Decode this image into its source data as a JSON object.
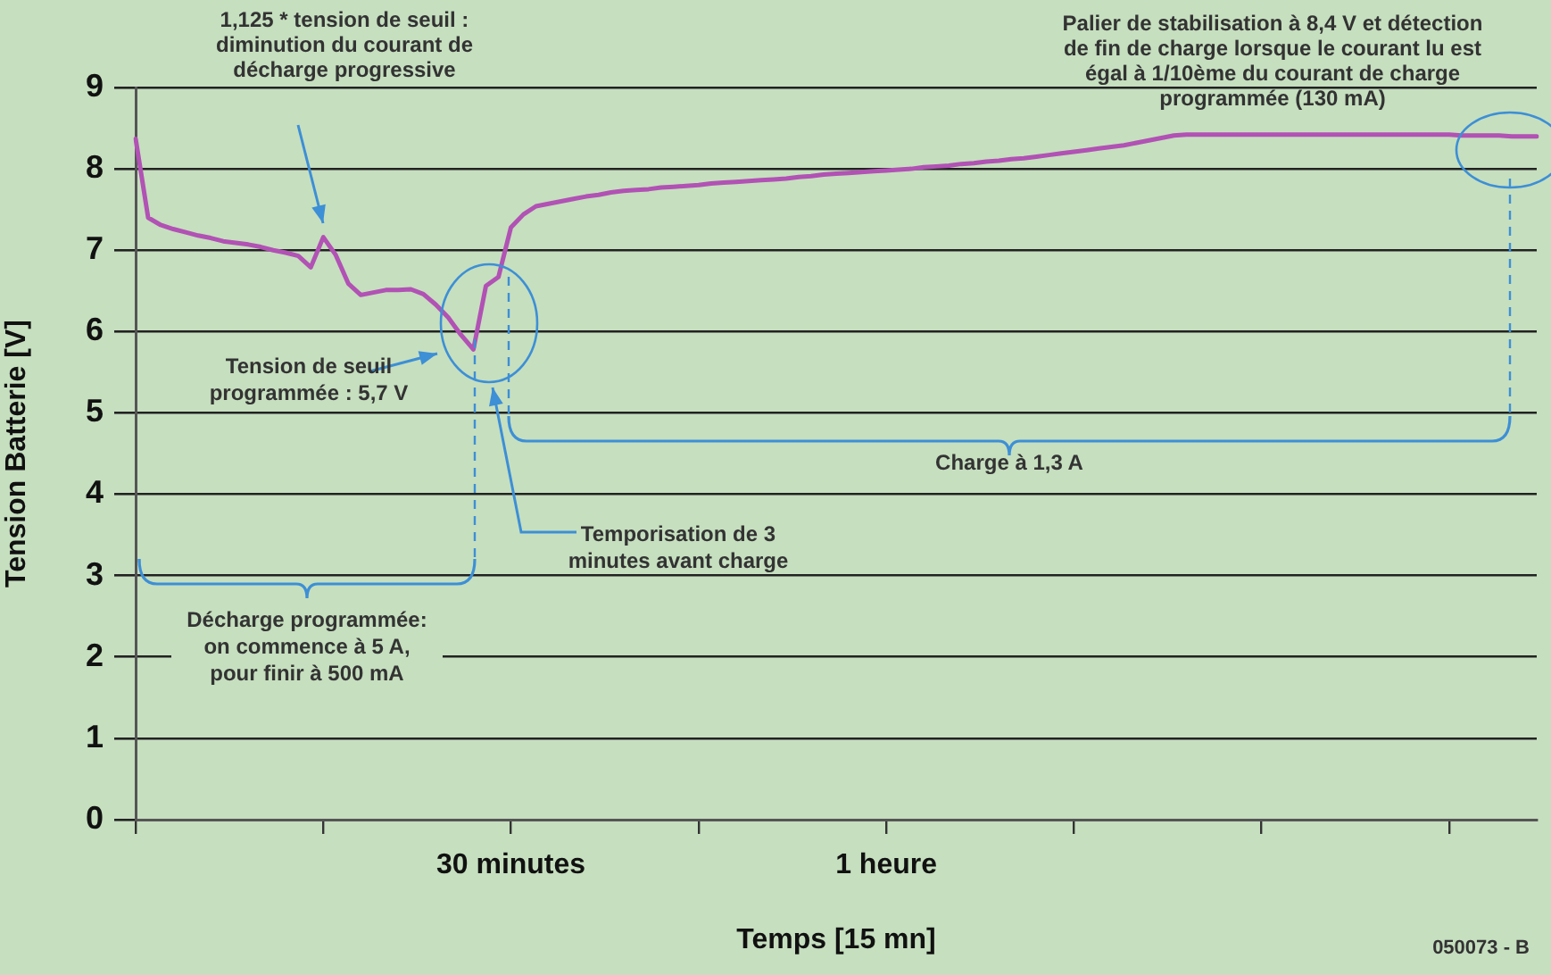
{
  "chart_data": {
    "type": "line",
    "xlabel": "Temps [15 mn]",
    "ylabel": "Tension Batterie [V]",
    "categories": [
      null,
      null,
      null,
      null,
      null,
      null,
      null,
      null,
      null,
      null,
      null,
      null,
      null,
      null,
      null,
      null,
      null,
      null,
      null,
      null,
      null,
      null,
      null,
      null,
      null,
      null,
      null,
      null,
      null,
      null,
      "30 minutes",
      null,
      null,
      null,
      null,
      null,
      null,
      null,
      null,
      null,
      null,
      null,
      null,
      null,
      null,
      null,
      null,
      null,
      null,
      null,
      null,
      null,
      null,
      null,
      null,
      null,
      null,
      null,
      null,
      null,
      "1 heure",
      null,
      null,
      null,
      null,
      null,
      null,
      null,
      null,
      null,
      null,
      null,
      null,
      null,
      null,
      null,
      null,
      null,
      null,
      null,
      null,
      null,
      null,
      null,
      null,
      null,
      null,
      null,
      null,
      null,
      null,
      null,
      null,
      null,
      null,
      null,
      null,
      null,
      null,
      null,
      null,
      null,
      null,
      null,
      null,
      null,
      null,
      null,
      null,
      null,
      null,
      null,
      null
    ],
    "ylim": [
      0,
      9
    ],
    "yticks": [
      0,
      1,
      2,
      3,
      4,
      5,
      6,
      7,
      8,
      9
    ],
    "grid": "y",
    "legend": false,
    "marker": "none",
    "line_style": "solid",
    "series": [
      {
        "color": "#b152b4",
        "values": [
          8.37,
          7.4,
          7.31,
          7.26,
          7.22,
          7.18,
          7.15,
          7.11,
          7.09,
          7.07,
          7.04,
          7.0,
          6.97,
          6.93,
          6.79,
          7.16,
          6.94,
          6.59,
          6.45,
          6.48,
          6.51,
          6.51,
          6.52,
          6.46,
          6.33,
          6.17,
          5.96,
          5.78,
          6.56,
          6.67,
          7.28,
          7.44,
          7.54,
          7.57,
          7.6,
          7.63,
          7.66,
          7.68,
          7.71,
          7.73,
          7.74,
          7.75,
          7.77,
          7.78,
          7.79,
          7.8,
          7.82,
          7.83,
          7.84,
          7.85,
          7.86,
          7.87,
          7.88,
          7.9,
          7.91,
          7.93,
          7.94,
          7.95,
          7.96,
          7.97,
          7.98,
          7.99,
          8.0,
          8.02,
          8.03,
          8.04,
          8.06,
          8.07,
          8.09,
          8.1,
          8.12,
          8.13,
          8.15,
          8.17,
          8.19,
          8.21,
          8.23,
          8.25,
          8.27,
          8.29,
          8.32,
          8.35,
          8.38,
          8.41,
          8.42,
          8.42,
          8.42,
          8.42,
          8.42,
          8.42,
          8.42,
          8.42,
          8.42,
          8.42,
          8.42,
          8.42,
          8.42,
          8.42,
          8.42,
          8.42,
          8.42,
          8.42,
          8.42,
          8.42,
          8.42,
          8.42,
          8.41,
          8.41,
          8.41,
          8.41,
          8.4,
          8.4,
          8.4
        ]
      }
    ],
    "annotations": [
      "1,125 * tension de seuil : diminution du courant de décharge progressive",
      "Tension de seuil programmée : 5,7 V",
      "Temporisation de 3 minutes avant charge",
      "Palier de stabilisation à 8,4 V et détection de fin de charge lorsque le courant lu est égal à 1/10ème du courant de charge programmée (130 mA)",
      "Charge à 1,3 A",
      "Décharge programmée: on commence à 5 A, pour finir à 500 mA",
      "050073 - B"
    ]
  }
}
